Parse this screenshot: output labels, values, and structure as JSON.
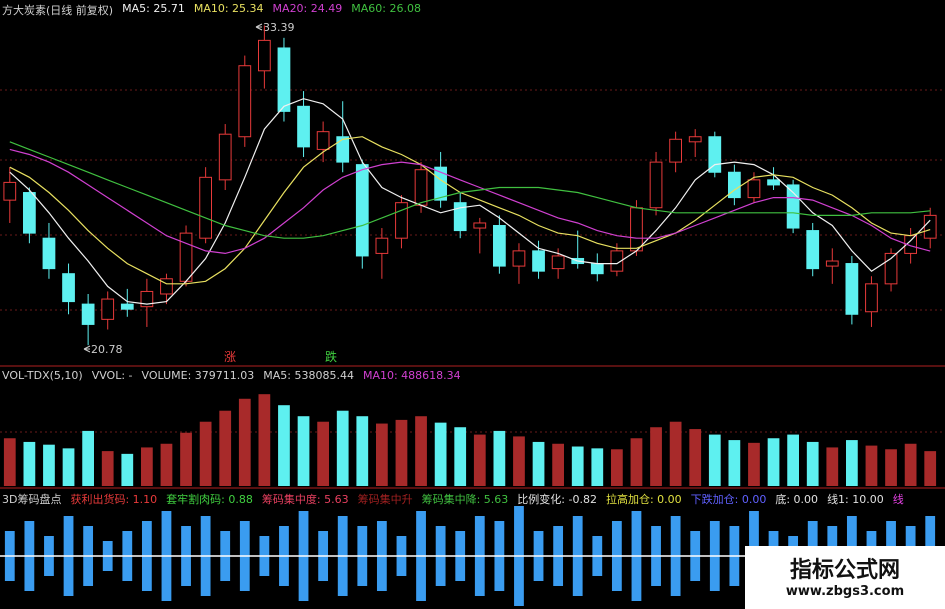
{
  "chart_data": [
    {
      "type": "candlestick",
      "title": "方大炭素(日线 前复权)",
      "ylim": [
        20,
        33.8
      ],
      "up_color": "#e83a3a",
      "down_color": "#5ef0f0",
      "annotations": [
        "33.39",
        "20.78",
        "涨",
        "跌"
      ],
      "candles": [
        [
          26.5,
          27.8,
          25.6,
          27.2
        ],
        [
          26.8,
          27.0,
          24.8,
          25.2
        ],
        [
          25.0,
          25.6,
          23.4,
          23.8
        ],
        [
          23.6,
          24.0,
          22.0,
          22.5
        ],
        [
          22.4,
          22.8,
          20.78,
          21.6
        ],
        [
          21.8,
          22.9,
          21.4,
          22.6
        ],
        [
          22.4,
          23.0,
          21.9,
          22.2
        ],
        [
          22.3,
          23.4,
          21.5,
          22.9
        ],
        [
          22.8,
          23.6,
          22.4,
          23.4
        ],
        [
          23.3,
          25.5,
          23.1,
          25.2
        ],
        [
          25.0,
          27.8,
          24.8,
          27.4
        ],
        [
          27.3,
          29.5,
          26.9,
          29.1
        ],
        [
          29.0,
          32.2,
          28.6,
          31.8
        ],
        [
          31.6,
          33.39,
          30.9,
          32.8
        ],
        [
          32.5,
          32.9,
          29.6,
          30.0
        ],
        [
          30.2,
          30.8,
          28.2,
          28.6
        ],
        [
          28.5,
          29.6,
          28.0,
          29.2
        ],
        [
          29.0,
          30.4,
          27.6,
          28.0
        ],
        [
          27.9,
          28.1,
          23.8,
          24.3
        ],
        [
          24.4,
          25.4,
          23.4,
          25.0
        ],
        [
          25.0,
          26.7,
          24.6,
          26.4
        ],
        [
          26.3,
          28.0,
          26.0,
          27.7
        ],
        [
          27.8,
          28.4,
          26.2,
          26.5
        ],
        [
          26.4,
          26.8,
          25.0,
          25.3
        ],
        [
          25.4,
          25.8,
          24.4,
          25.6
        ],
        [
          25.5,
          25.9,
          23.6,
          23.9
        ],
        [
          23.9,
          24.8,
          23.2,
          24.5
        ],
        [
          24.5,
          24.9,
          23.4,
          23.7
        ],
        [
          23.8,
          24.6,
          23.4,
          24.3
        ],
        [
          24.2,
          25.3,
          23.8,
          24.0
        ],
        [
          24.0,
          24.4,
          23.3,
          23.6
        ],
        [
          23.7,
          24.8,
          23.5,
          24.5
        ],
        [
          24.5,
          26.5,
          24.3,
          26.2
        ],
        [
          26.2,
          28.4,
          25.9,
          28.0
        ],
        [
          28.0,
          29.2,
          27.6,
          28.9
        ],
        [
          28.8,
          29.3,
          28.2,
          29.0
        ],
        [
          29.0,
          29.2,
          27.4,
          27.6
        ],
        [
          27.6,
          27.9,
          26.3,
          26.6
        ],
        [
          26.6,
          27.6,
          26.4,
          27.3
        ],
        [
          27.3,
          27.8,
          26.9,
          27.1
        ],
        [
          27.1,
          27.3,
          25.2,
          25.4
        ],
        [
          25.3,
          25.6,
          23.5,
          23.8
        ],
        [
          23.9,
          24.6,
          23.2,
          24.1
        ],
        [
          24.0,
          24.3,
          21.6,
          22.0
        ],
        [
          22.1,
          23.5,
          21.5,
          23.2
        ],
        [
          23.2,
          24.6,
          22.9,
          24.4
        ],
        [
          24.4,
          25.4,
          24.0,
          25.1
        ],
        [
          25.0,
          26.2,
          24.6,
          25.9
        ]
      ],
      "series": [
        {
          "name": "MA5:",
          "label": "25.71",
          "color": "#f0f0f0",
          "values": [
            27.6,
            26.9,
            26.0,
            25.0,
            24.1,
            23.1,
            22.5,
            22.4,
            22.5,
            23.3,
            24.2,
            25.6,
            27.4,
            29.3,
            30.2,
            30.5,
            30.3,
            29.7,
            28.0,
            27.0,
            26.6,
            26.3,
            26.0,
            26.2,
            26.3,
            25.8,
            25.2,
            24.6,
            24.4,
            24.1,
            24.0,
            24.0,
            24.5,
            25.3,
            26.2,
            27.3,
            27.9,
            28.0,
            27.9,
            27.5,
            26.8,
            26.0,
            25.5,
            24.5,
            23.7,
            24.2,
            24.9,
            25.71
          ]
        },
        {
          "name": "MA10:",
          "label": "25.34",
          "color": "#e8e060",
          "values": [
            27.8,
            27.4,
            26.8,
            26.1,
            25.3,
            24.6,
            24.0,
            23.6,
            23.2,
            23.2,
            23.3,
            23.8,
            24.6,
            25.7,
            26.8,
            27.8,
            28.4,
            28.9,
            29.0,
            28.6,
            28.3,
            27.9,
            27.3,
            26.8,
            26.5,
            26.2,
            25.9,
            25.5,
            25.2,
            25.1,
            24.8,
            24.6,
            24.6,
            24.9,
            25.2,
            25.7,
            26.3,
            26.9,
            27.4,
            27.5,
            27.4,
            27.0,
            26.7,
            26.2,
            25.6,
            25.2,
            25.1,
            25.34
          ]
        },
        {
          "name": "MA20:",
          "label": "24.49",
          "color": "#d040d0",
          "values": [
            28.5,
            28.3,
            28.0,
            27.6,
            27.1,
            26.6,
            26.1,
            25.6,
            25.1,
            24.8,
            24.5,
            24.4,
            24.6,
            25.0,
            25.6,
            26.2,
            26.9,
            27.4,
            27.7,
            27.9,
            28.0,
            27.9,
            27.6,
            27.3,
            27.0,
            26.7,
            26.4,
            26.1,
            25.8,
            25.6,
            25.3,
            25.1,
            25.0,
            25.0,
            25.2,
            25.5,
            25.8,
            26.1,
            26.4,
            26.6,
            26.6,
            26.5,
            26.2,
            25.9,
            25.5,
            25.0,
            24.7,
            24.49
          ]
        },
        {
          "name": "MA60:",
          "label": "26.08",
          "color": "#40c040",
          "values": [
            28.8,
            28.5,
            28.2,
            27.9,
            27.6,
            27.3,
            27.0,
            26.7,
            26.4,
            26.1,
            25.8,
            25.5,
            25.3,
            25.1,
            25.0,
            25.0,
            25.1,
            25.3,
            25.5,
            25.8,
            26.1,
            26.4,
            26.6,
            26.8,
            26.9,
            27.0,
            27.0,
            27.0,
            26.9,
            26.8,
            26.6,
            26.4,
            26.2,
            26.1,
            26.0,
            26.0,
            26.0,
            26.0,
            26.0,
            26.0,
            26.0,
            25.9,
            25.9,
            25.9,
            26.0,
            26.0,
            26.0,
            26.08
          ]
        }
      ]
    },
    {
      "type": "volume",
      "title": "VOL-TDX(5,10)",
      "items": [
        {
          "text": "VVOL: -",
          "color": "#d0d0d0"
        },
        {
          "text": "VOLUME: 379711.03",
          "color": "#d0d0d0"
        },
        {
          "text": "MA5: 538085.44",
          "color": "#d0d0d0"
        },
        {
          "text": "MA10: 488618.34",
          "color": "#d040d0"
        }
      ],
      "ylim": [
        0,
        1100000
      ],
      "values": [
        520000,
        480000,
        450000,
        410000,
        600000,
        380000,
        350000,
        420000,
        460000,
        580000,
        700000,
        820000,
        950000,
        1000000,
        880000,
        760000,
        700000,
        820000,
        760000,
        680000,
        720000,
        760000,
        690000,
        640000,
        560000,
        600000,
        540000,
        480000,
        460000,
        430000,
        410000,
        400000,
        520000,
        640000,
        700000,
        620000,
        560000,
        500000,
        470000,
        520000,
        560000,
        480000,
        420000,
        500000,
        440000,
        400000,
        460000,
        379711.03
      ]
    },
    {
      "type": "mirror-bar",
      "title": "3D筹码盘点",
      "color": "#3a9cf0",
      "items": [
        {
          "text": "获利出货码: 1.10",
          "color": "#e83a3a"
        },
        {
          "text": "套牢割肉码: 0.88",
          "color": "#40d040"
        },
        {
          "text": "筹码集中度: 5.63",
          "color": "#e84060"
        },
        {
          "text": "筹码集中升",
          "color": "#a02020"
        },
        {
          "text": "筹码集中降: 5.63",
          "color": "#40c040"
        },
        {
          "text": "比例变化: -0.82",
          "color": "#e0e0e0"
        },
        {
          "text": "拉高加仓: 0.00",
          "color": "#e0e040"
        },
        {
          "text": "下跌加仓: 0.00",
          "color": "#6060ff"
        },
        {
          "text": "底: 0.00",
          "color": "#e0e0e0"
        },
        {
          "text": "线1: 10.00",
          "color": "#e0e0e0"
        },
        {
          "text": "线",
          "color": "#e040e0"
        }
      ],
      "ylim": [
        -1,
        1
      ],
      "values": [
        0.5,
        0.7,
        0.4,
        0.8,
        0.6,
        0.3,
        0.5,
        0.7,
        0.9,
        0.6,
        0.8,
        0.5,
        0.7,
        0.4,
        0.6,
        0.9,
        0.5,
        0.8,
        0.6,
        0.7,
        0.4,
        0.9,
        0.6,
        0.5,
        0.8,
        0.7,
        1.0,
        0.5,
        0.6,
        0.8,
        0.4,
        0.7,
        0.9,
        0.6,
        0.8,
        0.5,
        0.7,
        0.6,
        0.9,
        0.5,
        0.4,
        0.7,
        0.6,
        0.8,
        0.5,
        0.7,
        0.6,
        0.8
      ]
    }
  ],
  "watermark": {
    "title": "指标公式网",
    "url": "www.zbgs3.com"
  }
}
